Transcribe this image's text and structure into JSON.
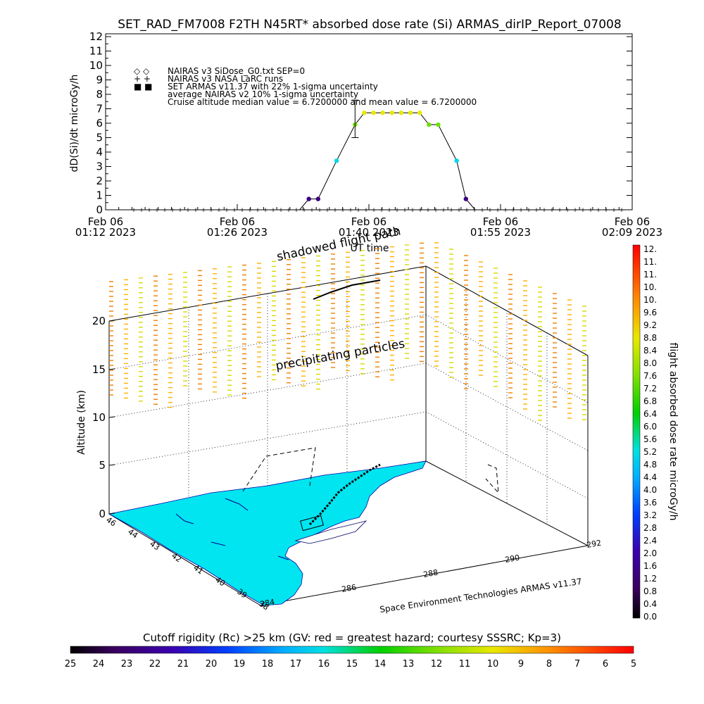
{
  "title": "SET_RAD_FM7008  F2TH N45RT* absorbed dose rate (Si) ARMAS_dirIP_Report_07008",
  "top_chart": {
    "ylabel": "dD(Si)/dt microGy/h",
    "xlabel": "UT time",
    "y_ticks": [
      "0",
      "1",
      "2",
      "3",
      "4",
      "5",
      "6",
      "7",
      "8",
      "9",
      "10",
      "11",
      "12"
    ],
    "x_ticks": [
      {
        "l1": "Feb 06",
        "l2": "01:12 2023"
      },
      {
        "l1": "Feb 06",
        "l2": "01:26 2023"
      },
      {
        "l1": "Feb 06",
        "l2": "01:40 2023"
      },
      {
        "l1": "Feb 06",
        "l2": "01:55 2023"
      },
      {
        "l1": "Feb 06",
        "l2": "02:09 2023"
      }
    ],
    "legend": [
      {
        "marker": "◇ ◇",
        "text": "NAIRAS v3 SiDose_G0.txt SEP=0"
      },
      {
        "marker": "+ +",
        "text": "NAIRAS v3 NASA LaRC runs"
      },
      {
        "marker": "■ ■",
        "text": "SET ARMAS v11.37 with 22% 1-sigma uncertainty"
      },
      {
        "marker": "",
        "text": "average NAIRAS v2 10% 1-sigma uncertainty"
      },
      {
        "marker": "",
        "text": "Cruise altitude median value = 6.7200000 and mean value = 6.7200000"
      }
    ]
  },
  "chart_data": [
    {
      "type": "line",
      "title": "SET_RAD_FM7008  F2TH N45RT* absorbed dose rate (Si) ARMAS_dirIP_Report_07008",
      "xlabel": "UT time",
      "ylabel": "dD(Si)/dt microGy/h",
      "ylim": [
        0,
        12
      ],
      "xlim": [
        "01:12",
        "02:09"
      ],
      "series": [
        {
          "name": "SET ARMAS v11.37 with 22% 1-sigma uncertainty",
          "x": [
            "01:34",
            "01:35",
            "01:37",
            "01:39",
            "01:40",
            "01:41",
            "01:42",
            "01:43",
            "01:44",
            "01:45",
            "01:46",
            "01:47",
            "01:48",
            "01:50",
            "01:51"
          ],
          "values": [
            0.75,
            0.75,
            3.4,
            5.9,
            6.72,
            6.72,
            6.72,
            6.72,
            6.72,
            6.72,
            6.72,
            5.9,
            5.9,
            3.4,
            0.75
          ]
        }
      ],
      "error_bar": {
        "x": "01:39",
        "low": 5.0,
        "high": 7.6
      }
    },
    {
      "type": "scatter",
      "zlabel": "Altitude (km)",
      "z_ticks": [
        "0",
        "5",
        "10",
        "15",
        "20"
      ],
      "latitude_ticks": [
        "46",
        "44",
        "43",
        "42",
        "41",
        "40",
        "39",
        "38"
      ],
      "longitude_ticks": [
        "284",
        "286",
        "288",
        "290",
        "292"
      ],
      "annotations": [
        "shadowed flight path",
        "precipitating particles"
      ],
      "credit": "Space Environment Technologies ARMAS v11.37"
    },
    {
      "type": "heatmap",
      "colorbar_label": "flight absorbed dose rate microGy/h",
      "colorbar_ticks": [
        "12.",
        "11.",
        "11.",
        "10.",
        "10.",
        "9.6",
        "9.2",
        "8.8",
        "8.4",
        "8.0",
        "7.6",
        "7.2",
        "6.8",
        "6.4",
        "6.0",
        "5.6",
        "5.2",
        "4.8",
        "4.4",
        "4.0",
        "3.6",
        "3.2",
        "2.8",
        "2.4",
        "2.0",
        "1.6",
        "1.2",
        "0.8",
        "0.4",
        "0.0"
      ],
      "range": [
        0,
        12
      ]
    },
    {
      "type": "heatmap",
      "colorbar_label": "Cutoff rigidity (Rc) >25 km (GV: red = greatest hazard; courtesy SSSRC; Kp=3)",
      "colorbar_ticks": [
        "25",
        "24",
        "23",
        "22",
        "21",
        "20",
        "19",
        "18",
        "17",
        "16",
        "15",
        "14",
        "13",
        "12",
        "11",
        "10",
        "9",
        "8",
        "7",
        "6",
        "5"
      ],
      "range": [
        25,
        5
      ]
    }
  ]
}
